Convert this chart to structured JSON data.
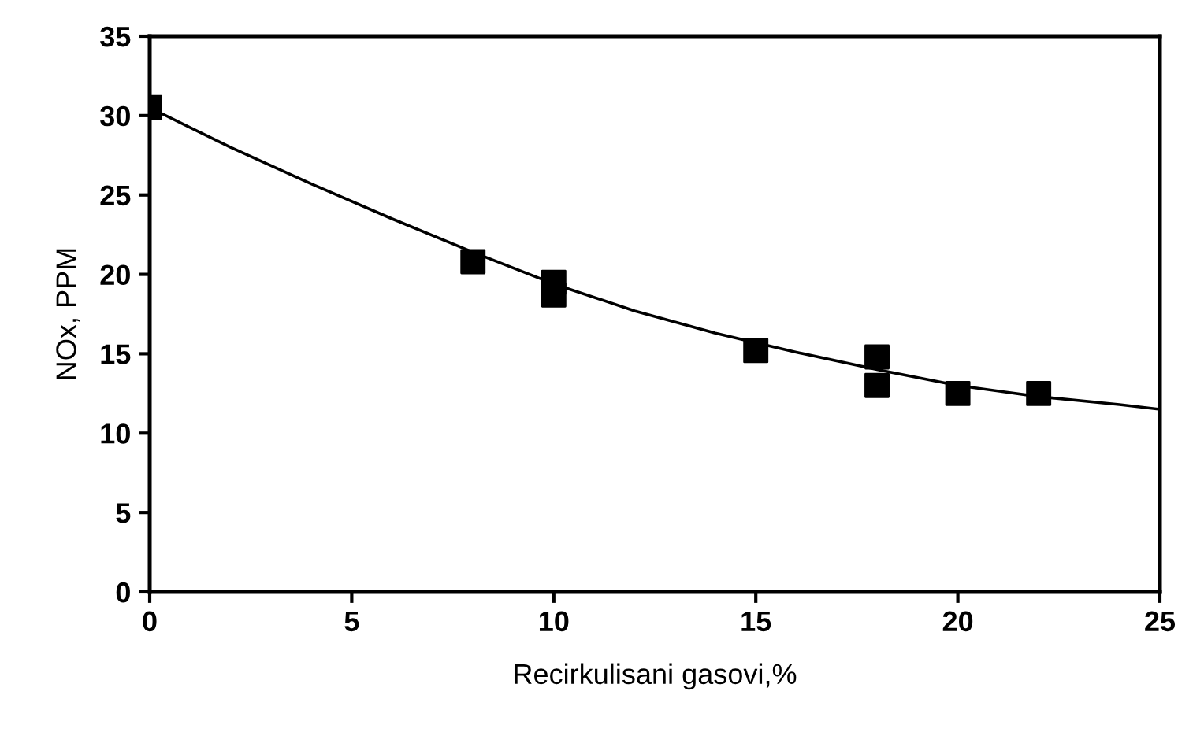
{
  "chart_data": {
    "type": "scatter",
    "xlabel": "Recirkulisani gasovi,%",
    "ylabel": "NOx, PPM",
    "series": [
      {
        "color": "#000000",
        "marker": "square",
        "x": [
          0,
          8,
          10,
          10,
          15,
          18,
          18,
          20,
          22
        ],
        "values": [
          30.5,
          20.8,
          19.5,
          18.7,
          15.2,
          14.8,
          13.0,
          12.5,
          12.5
        ]
      },
      {
        "type": "line",
        "color": "#000000",
        "marker": "none",
        "line_style": "solid",
        "x": [
          0,
          2,
          4,
          6,
          8,
          10,
          12,
          14,
          16,
          18,
          20,
          22,
          24,
          25
        ],
        "values": [
          30.5,
          28.0,
          25.7,
          23.5,
          21.4,
          19.4,
          17.7,
          16.3,
          15.1,
          14.0,
          13.0,
          12.3,
          11.8,
          11.5
        ]
      }
    ],
    "xlim": [
      0,
      25
    ],
    "xticks": [
      0,
      5,
      10,
      15,
      20,
      25
    ],
    "ylim": [
      0,
      35
    ],
    "yticks": [
      0,
      5,
      10,
      15,
      20,
      25,
      30,
      35
    ],
    "grid": false,
    "legend": false
  }
}
